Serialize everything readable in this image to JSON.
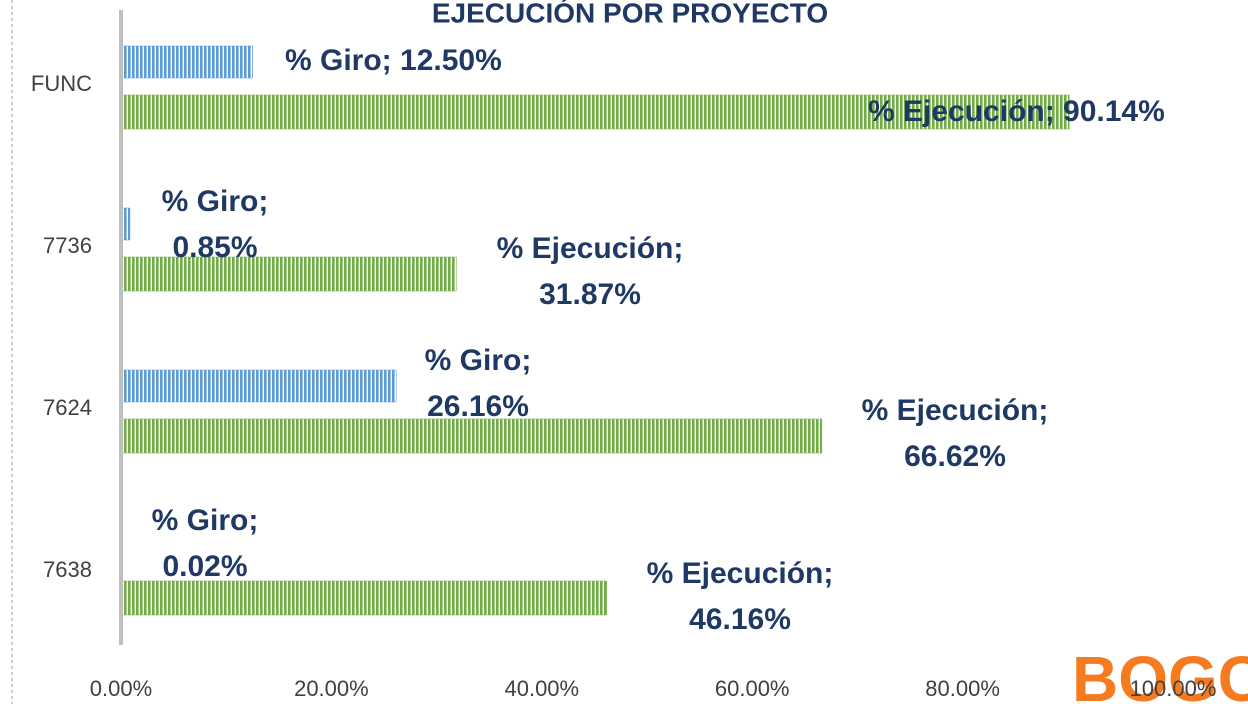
{
  "chart_data": {
    "type": "hbar",
    "title": "EJECUCIÓN POR PROYECTO",
    "categories": [
      "FUNC",
      "7736",
      "7624",
      "7638"
    ],
    "series": [
      {
        "name": "% Giro",
        "color": "#5b9bd5",
        "values": [
          12.5,
          0.85,
          26.16,
          0.02
        ],
        "value_labels": [
          "% Giro; 12.50%",
          "% Giro; 0.85%",
          "% Giro; 26.16%",
          "% Giro; 0.02%"
        ]
      },
      {
        "name": "% Ejecución",
        "color": "#70ad47",
        "values": [
          90.14,
          31.87,
          66.62,
          46.16
        ],
        "value_labels": [
          "% Ejecución; 90.14%",
          "% Ejecución; 31.87%",
          "% Ejecución; 66.62%",
          "% Ejecución; 46.16%"
        ]
      }
    ],
    "xlim": [
      0,
      100
    ],
    "xticks": [
      {
        "value": 0,
        "label": "0.00%"
      },
      {
        "value": 20,
        "label": "20.00%"
      },
      {
        "value": 40,
        "label": "40.00%"
      },
      {
        "value": 60,
        "label": "60.00%"
      },
      {
        "value": 80,
        "label": "80.00%"
      },
      {
        "value": 100,
        "label": "100.00%"
      }
    ],
    "logo": "BOGC"
  }
}
